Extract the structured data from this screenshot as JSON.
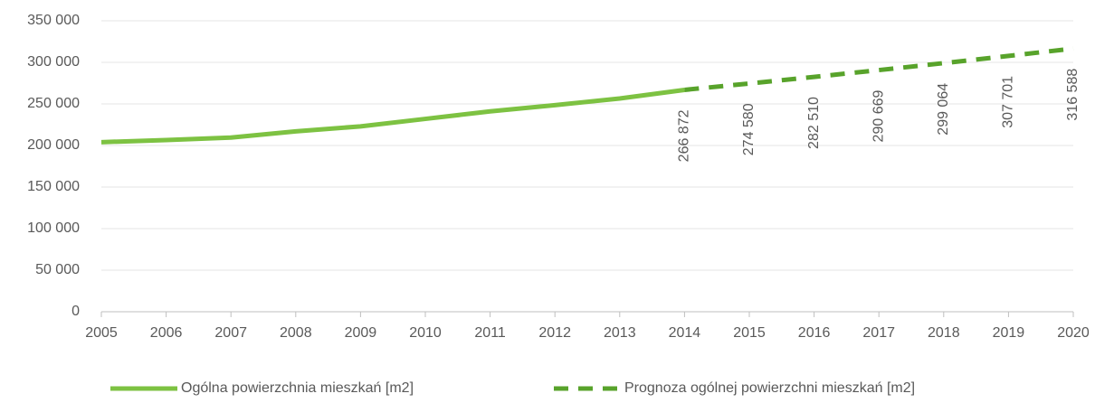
{
  "chart_data": {
    "type": "line",
    "x": [
      2005,
      2006,
      2007,
      2008,
      2009,
      2010,
      2011,
      2012,
      2013,
      2014,
      2015,
      2016,
      2017,
      2018,
      2019,
      2020
    ],
    "xlim": [
      2005,
      2020
    ],
    "xticks": [
      2005,
      2006,
      2007,
      2008,
      2009,
      2010,
      2011,
      2012,
      2013,
      2014,
      2015,
      2016,
      2017,
      2018,
      2019,
      2020
    ],
    "ylim": [
      0,
      350000
    ],
    "yticks": [
      0,
      {
        "value": 50000,
        "label": "50 000"
      },
      {
        "value": 100000,
        "label": "100 000"
      },
      {
        "value": 150000,
        "label": "150 000"
      },
      {
        "value": 200000,
        "label": "200 000"
      },
      {
        "value": 250000,
        "label": "250 000"
      },
      {
        "value": 300000,
        "label": "300 000"
      },
      {
        "value": 350000,
        "label": "350 000"
      }
    ],
    "grid": true,
    "legend": "bottom",
    "series": [
      {
        "name": "Ogólna powierzchnia mieszkań [m2]",
        "color": "#7dc242",
        "dash": false,
        "values": [
          204000,
          206500,
          209500,
          217000,
          223000,
          232000,
          241000,
          248500,
          256500,
          266872,
          null,
          null,
          null,
          null,
          null,
          null
        ]
      },
      {
        "name": "Prognoza ogólnej powierzchni mieszkań [m2]",
        "color": "#58a32b",
        "dash": true,
        "values": [
          null,
          null,
          null,
          null,
          null,
          null,
          null,
          null,
          null,
          266872,
          274580,
          282510,
          290669,
          299064,
          307701,
          316588
        ],
        "value_labels": [
          null,
          null,
          null,
          null,
          null,
          null,
          null,
          null,
          null,
          "266 872",
          "274 580",
          "282 510",
          "290 669",
          "299 064",
          "307 701",
          "316 588"
        ]
      }
    ]
  }
}
